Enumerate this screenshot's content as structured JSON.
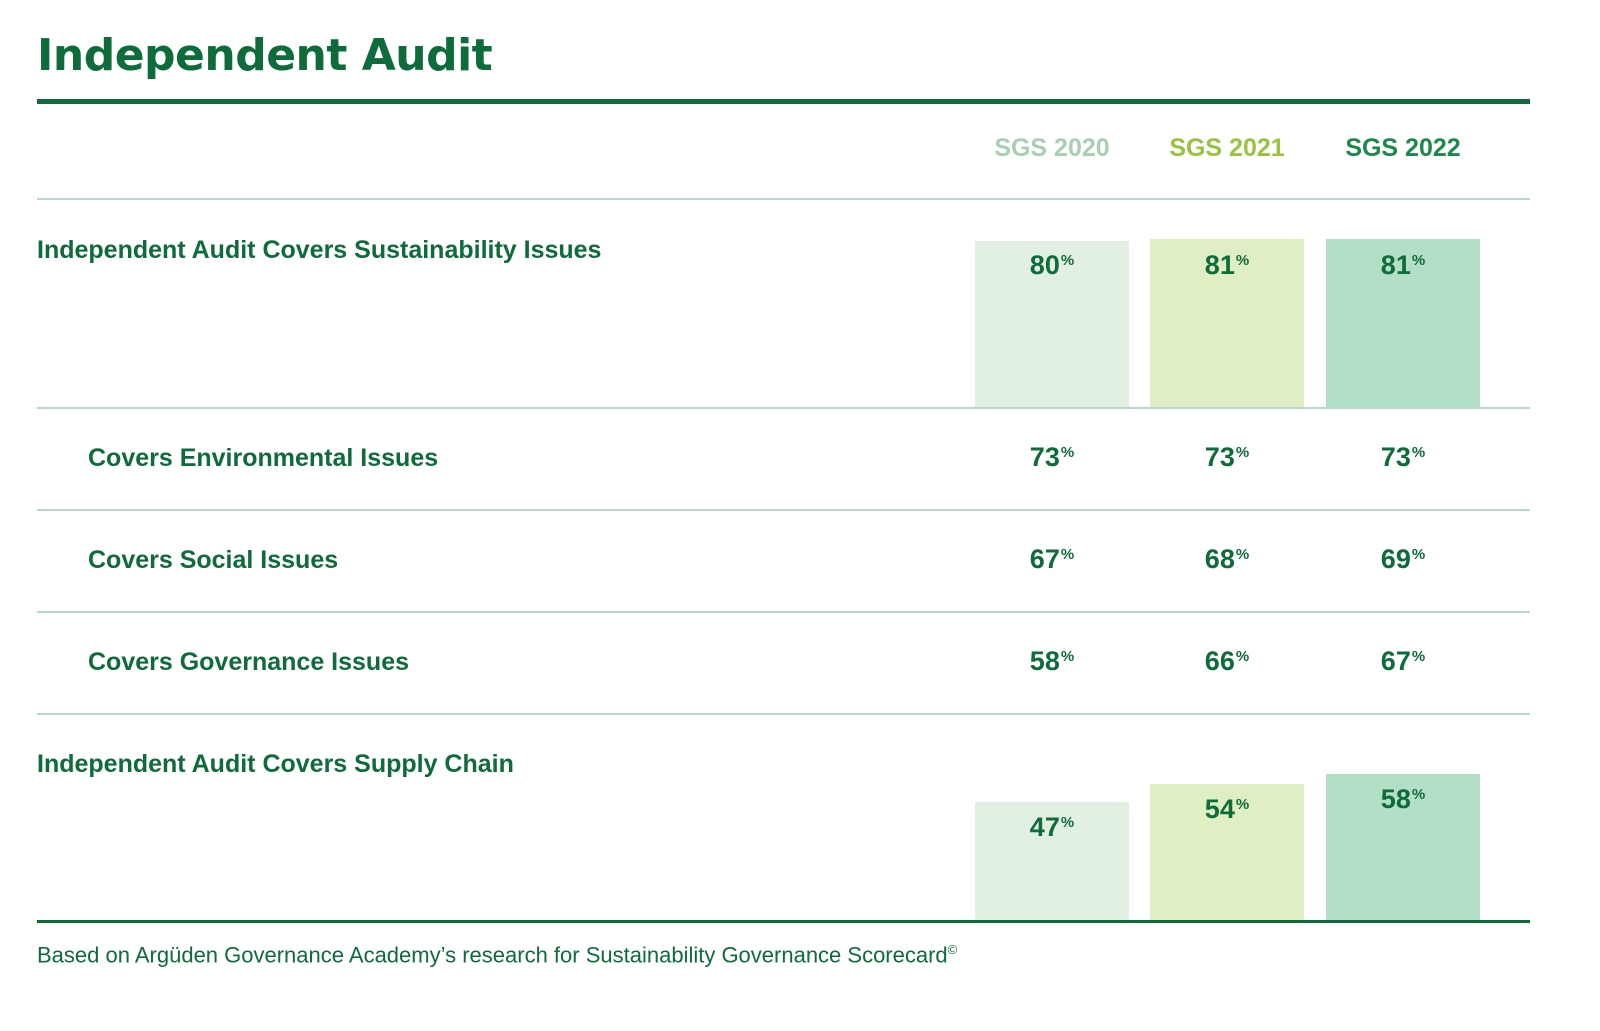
{
  "title": "Independent Audit",
  "footnote": "Based on Argüden Governance Academy’s research for Sustainability Governance Scorecard",
  "footnote_mark": "©",
  "percent_sign": "%",
  "colors": {
    "text": "#0e6b3a",
    "sgs2020_header": "#a9cfb3",
    "sgs2021_header": "#97c43f",
    "sgs2022_header": "#1a8a4a",
    "sgs2020_bar": "#e2f0e4",
    "sgs2021_bar": "#dfeec3",
    "sgs2022_bar": "#b2dfc6"
  },
  "chart_data": {
    "type": "table",
    "unit": "%",
    "columns": [
      "SGS 2020",
      "SGS 2021",
      "SGS 2022"
    ],
    "ylim": [
      0,
      100
    ],
    "rows": [
      {
        "label": "Independent Audit Covers Sustainability Issues",
        "values": [
          80,
          81,
          81
        ],
        "bars": true,
        "indent": false
      },
      {
        "label": "Covers Environmental Issues",
        "values": [
          73,
          73,
          73
        ],
        "bars": false,
        "indent": true
      },
      {
        "label": "Covers Social Issues",
        "values": [
          67,
          68,
          69
        ],
        "bars": false,
        "indent": true
      },
      {
        "label": "Covers Governance Issues",
        "values": [
          58,
          66,
          67
        ],
        "bars": false,
        "indent": true
      },
      {
        "label": "Independent Audit Covers Supply Chain",
        "values": [
          47,
          54,
          58
        ],
        "bars": true,
        "indent": false
      }
    ]
  }
}
